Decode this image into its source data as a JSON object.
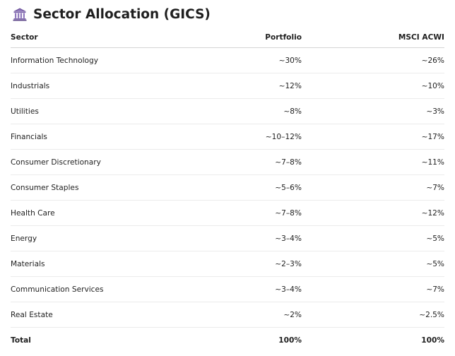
{
  "header": {
    "icon": "bank-icon",
    "title": "Sector Allocation (GICS)"
  },
  "table": {
    "columns": [
      "Sector",
      "Portfolio",
      "MSCI ACWI"
    ],
    "rows": [
      {
        "sector": "Information Technology",
        "portfolio": "~30%",
        "acwi": "~26%"
      },
      {
        "sector": "Industrials",
        "portfolio": "~12%",
        "acwi": "~10%"
      },
      {
        "sector": "Utilities",
        "portfolio": "~8%",
        "acwi": "~3%"
      },
      {
        "sector": "Financials",
        "portfolio": "~10–12%",
        "acwi": "~17%"
      },
      {
        "sector": "Consumer Discretionary",
        "portfolio": "~7–8%",
        "acwi": "~11%"
      },
      {
        "sector": "Consumer Staples",
        "portfolio": "~5–6%",
        "acwi": "~7%"
      },
      {
        "sector": "Health Care",
        "portfolio": "~7–8%",
        "acwi": "~12%"
      },
      {
        "sector": "Energy",
        "portfolio": "~3–4%",
        "acwi": "~5%"
      },
      {
        "sector": "Materials",
        "portfolio": "~2–3%",
        "acwi": "~5%"
      },
      {
        "sector": "Communication Services",
        "portfolio": "~3–4%",
        "acwi": "~7%"
      },
      {
        "sector": "Real Estate",
        "portfolio": "~2%",
        "acwi": "~2.5%"
      }
    ],
    "total": {
      "sector": "Total",
      "portfolio": "100%",
      "acwi": "100%"
    }
  }
}
